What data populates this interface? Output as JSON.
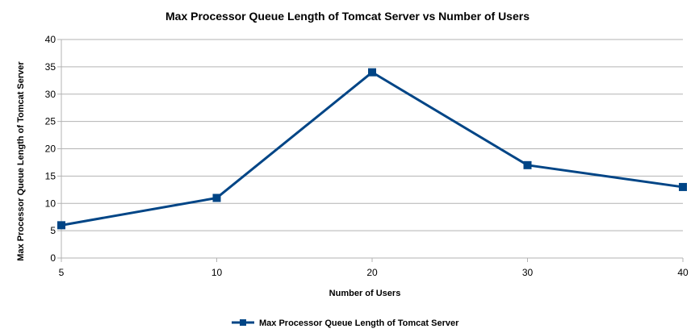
{
  "chart_data": {
    "type": "line",
    "title": "Max Processor Queue Length  of Tomcat Server vs Number of Users",
    "xlabel": "Number of Users",
    "ylabel": "Max Processor Queue Length of Tomcat Server",
    "categories": [
      "5",
      "10",
      "20",
      "30",
      "40"
    ],
    "series": [
      {
        "name": "Max Processor Queue Length  of Tomcat Server",
        "values": [
          6,
          11,
          34,
          17,
          13
        ]
      }
    ],
    "ylim": [
      0,
      40
    ],
    "yticks": [
      0,
      5,
      10,
      15,
      20,
      25,
      30,
      35,
      40
    ],
    "grid": true,
    "legend_position": "bottom",
    "line_color": "#004586"
  }
}
